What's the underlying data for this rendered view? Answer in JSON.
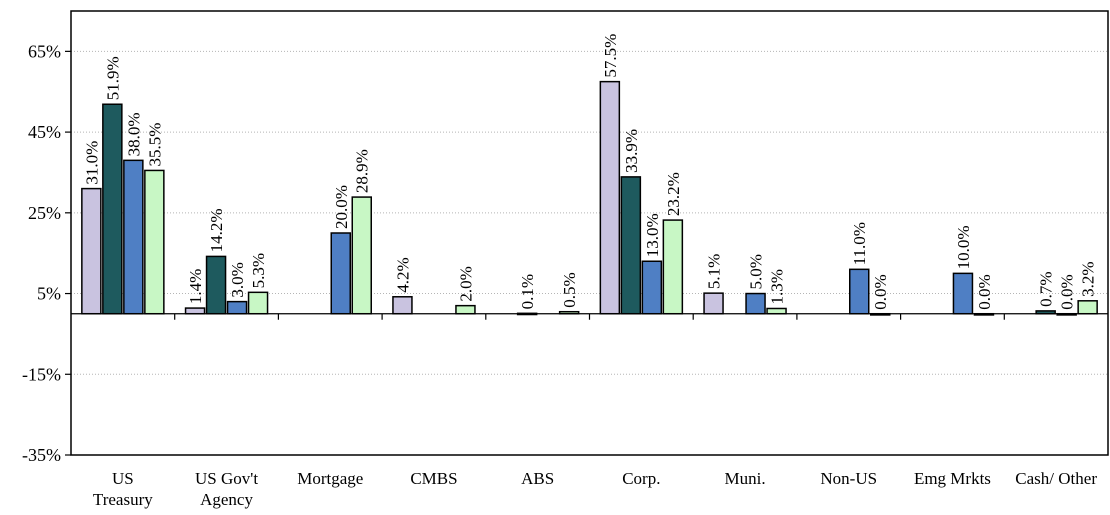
{
  "chart_data": {
    "type": "bar",
    "title": "",
    "xlabel": "",
    "ylabel": "",
    "ylim": [
      -35,
      75
    ],
    "yticks": [
      -35,
      -15,
      5,
      25,
      45,
      65
    ],
    "ytick_labels": [
      "-35%",
      "-15%",
      "5%",
      "25%",
      "45%",
      "65%"
    ],
    "grid": "horizontal dotted",
    "legend": "none",
    "value_format": "percent, 1 decimal",
    "categories": [
      [
        "US",
        "Treasury"
      ],
      [
        "US Gov't",
        "Agency"
      ],
      [
        "Mortgage"
      ],
      [
        "CMBS"
      ],
      [
        "ABS"
      ],
      [
        "Corp."
      ],
      [
        "Muni."
      ],
      [
        "Non-US"
      ],
      [
        "Emg Mrkts"
      ],
      [
        "Cash/ Other"
      ]
    ],
    "series": [
      {
        "color": "#c9c3e0",
        "values": [
          31.0,
          1.4,
          null,
          4.2,
          null,
          57.5,
          5.1,
          null,
          null,
          null
        ]
      },
      {
        "color": "#1e5a5e",
        "values": [
          51.9,
          14.2,
          null,
          null,
          0.1,
          33.9,
          null,
          null,
          null,
          0.7
        ]
      },
      {
        "color": "#4f7fc4",
        "values": [
          38.0,
          3.0,
          20.0,
          null,
          null,
          13.0,
          5.0,
          11.0,
          10.0,
          0.0
        ]
      },
      {
        "color": "#c8f7c5",
        "values": [
          35.5,
          5.3,
          28.9,
          2.0,
          0.5,
          23.2,
          1.3,
          0.0,
          0.0,
          3.2
        ]
      }
    ]
  }
}
